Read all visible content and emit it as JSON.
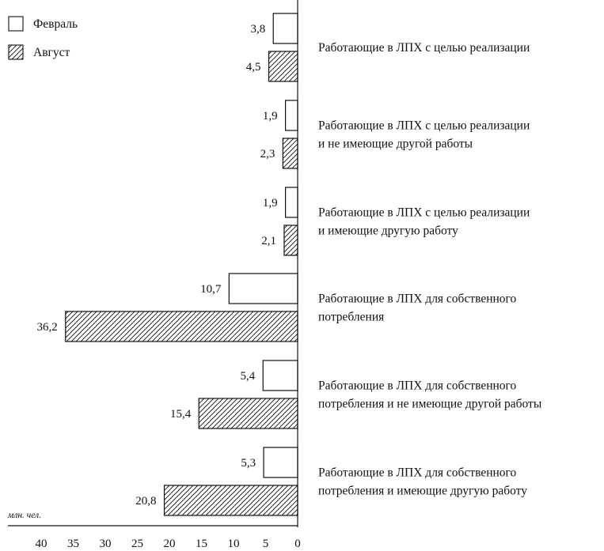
{
  "chart_data": {
    "type": "bar",
    "orientation": "horizontal",
    "x_direction": "reversed",
    "xlim": [
      0,
      40
    ],
    "x_ticks": [
      "40",
      "35",
      "30",
      "25",
      "20",
      "15",
      "10",
      "5",
      "0"
    ],
    "unit_label": "млн. чел.",
    "legend": {
      "placement": "top-left",
      "items": [
        {
          "name": "Февраль",
          "fill": "white"
        },
        {
          "name": "Август",
          "fill": "hatched"
        }
      ]
    },
    "series": [
      {
        "name": "Февраль",
        "values": [
          3.8,
          1.9,
          1.9,
          10.7,
          5.4,
          5.3
        ],
        "labels": [
          "3,8",
          "1,9",
          "1,9",
          "10,7",
          "5,4",
          "5,3"
        ]
      },
      {
        "name": "Август",
        "values": [
          4.5,
          2.3,
          2.1,
          36.2,
          15.4,
          20.8
        ],
        "labels": [
          "4,5",
          "2,3",
          "2,1",
          "36,2",
          "15,4",
          "20,8"
        ]
      }
    ],
    "categories": [
      {
        "lines": [
          "Работающие в ЛПХ с целью реализации"
        ]
      },
      {
        "lines": [
          "Работающие в ЛПХ с целью реализации",
          "и не имеющие другой работы"
        ]
      },
      {
        "lines": [
          "Работающие в ЛПХ с целью реализации",
          "и имеющие другую работу"
        ]
      },
      {
        "lines": [
          "Работающие в ЛПХ для собственного",
          "потребления"
        ]
      },
      {
        "lines": [
          "Работающие в ЛПХ для собственного",
          "потребления и не имеющие другой работы"
        ]
      },
      {
        "lines": [
          "Работающие в ЛПХ для собственного",
          "потребления и имеющие другую работу"
        ]
      }
    ]
  }
}
